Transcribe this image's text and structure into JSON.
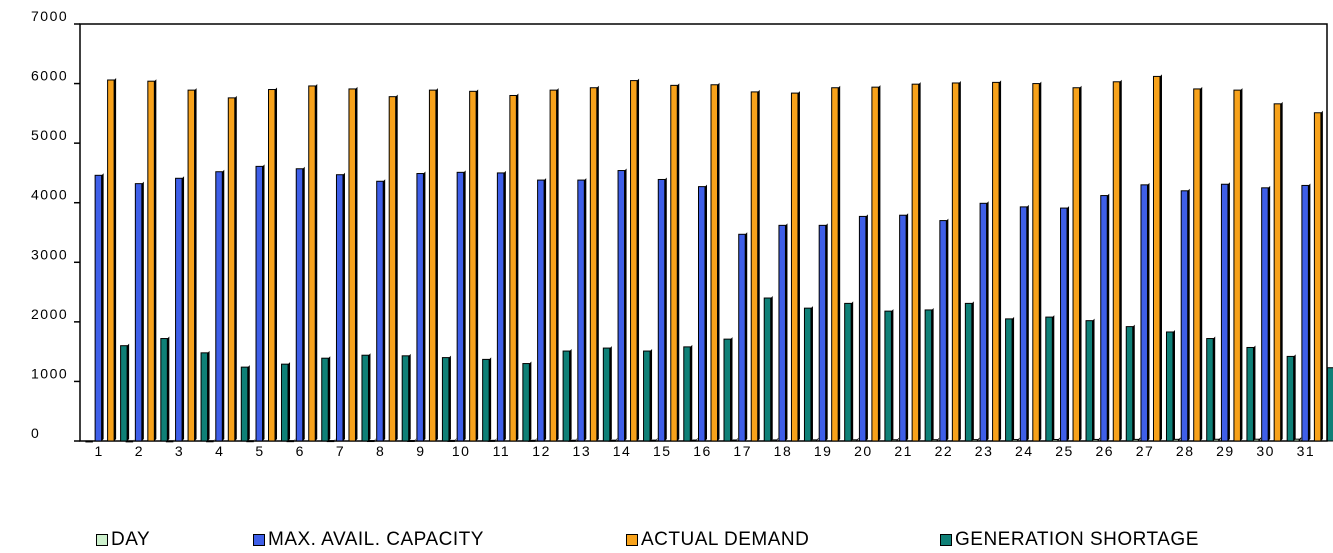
{
  "chart_data": {
    "type": "bar",
    "categories": [
      "1",
      "2",
      "3",
      "4",
      "5",
      "6",
      "7",
      "8",
      "9",
      "10",
      "11",
      "12",
      "13",
      "14",
      "15",
      "16",
      "17",
      "18",
      "19",
      "20",
      "21",
      "22",
      "23",
      "24",
      "25",
      "26",
      "27",
      "28",
      "29",
      "30",
      "31"
    ],
    "series": [
      {
        "name": "DAY",
        "color": "#ccf0cc",
        "values": [
          1,
          2,
          3,
          4,
          5,
          6,
          7,
          8,
          9,
          10,
          11,
          12,
          13,
          14,
          15,
          16,
          17,
          18,
          19,
          20,
          21,
          22,
          23,
          24,
          25,
          26,
          27,
          28,
          29,
          30,
          31
        ]
      },
      {
        "name": "MAX. AVAIL. CAPACITY",
        "color": "#3f5fe8",
        "values": [
          4460,
          4320,
          4410,
          4520,
          4610,
          4570,
          4470,
          4360,
          4490,
          4510,
          4500,
          4380,
          4380,
          4540,
          4390,
          4270,
          3470,
          3620,
          3620,
          3770,
          3790,
          3700,
          3990,
          3930,
          3910,
          4120,
          4300,
          4200,
          4310,
          4250,
          4290
        ]
      },
      {
        "name": "ACTUAL DEMAND",
        "color": "#f7a21b",
        "values": [
          6060,
          6040,
          5890,
          5760,
          5900,
          5960,
          5910,
          5780,
          5890,
          5870,
          5800,
          5890,
          5930,
          6050,
          5970,
          5980,
          5860,
          5840,
          5930,
          5940,
          5990,
          6010,
          6020,
          6000,
          5930,
          6030,
          6120,
          5910,
          5890,
          5660,
          5510
        ]
      },
      {
        "name": "GENERATION SHORTAGE",
        "color": "#0f8077",
        "values": [
          1600,
          1720,
          1480,
          1240,
          1290,
          1390,
          1440,
          1430,
          1400,
          1370,
          1300,
          1510,
          1560,
          1510,
          1580,
          1710,
          2400,
          2230,
          2310,
          2180,
          2200,
          2310,
          2050,
          2080,
          2020,
          1920,
          1830,
          1720,
          1570,
          1420,
          1230
        ]
      }
    ],
    "ylim": [
      0,
      7000
    ],
    "yticks": [
      "0",
      "1000",
      "2000",
      "3000",
      "4000",
      "5000",
      "6000",
      "7000"
    ],
    "grid": false,
    "legend_position": "bottom"
  }
}
